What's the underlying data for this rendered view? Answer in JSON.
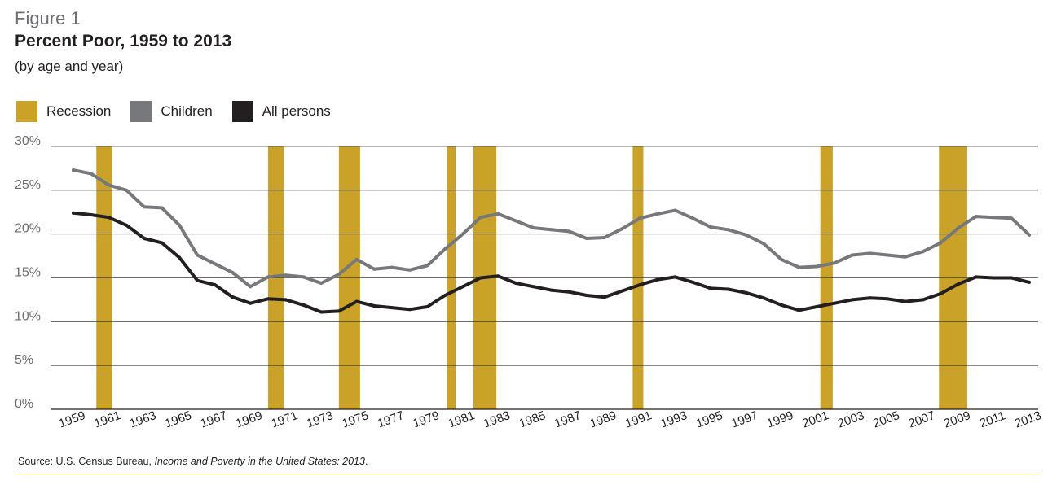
{
  "header": {
    "figure_label": "Figure 1",
    "title": "Percent Poor, 1959 to 2013",
    "subtitle": "(by age and year)"
  },
  "legend": [
    {
      "label": "Recession",
      "color": "#c9a227"
    },
    {
      "label": "Children",
      "color": "#77787b"
    },
    {
      "label": "All persons",
      "color": "#231f20"
    }
  ],
  "source": {
    "prefix": "Source: U.S. Census Bureau, ",
    "title": "Income and Poverty in the United States: 2013",
    "suffix": "."
  },
  "chart_data": {
    "type": "line",
    "title": "Percent Poor, 1959 to 2013",
    "xlabel": "",
    "ylabel": "",
    "xlim": [
      1959,
      2013
    ],
    "ylim": [
      0,
      30
    ],
    "yticks": [
      0,
      5,
      10,
      15,
      20,
      25,
      30
    ],
    "ytick_labels": [
      "0%",
      "5%",
      "10%",
      "15%",
      "20%",
      "25%",
      "30%"
    ],
    "xticks": [
      1959,
      1961,
      1963,
      1965,
      1967,
      1969,
      1971,
      1973,
      1975,
      1977,
      1979,
      1981,
      1983,
      1985,
      1987,
      1989,
      1991,
      1993,
      1995,
      1997,
      1999,
      2001,
      2003,
      2005,
      2007,
      2009,
      2011,
      2013
    ],
    "grid": true,
    "x": [
      1959,
      1960,
      1961,
      1962,
      1963,
      1964,
      1965,
      1966,
      1967,
      1968,
      1969,
      1970,
      1971,
      1972,
      1973,
      1974,
      1975,
      1976,
      1977,
      1978,
      1979,
      1980,
      1981,
      1982,
      1983,
      1984,
      1985,
      1986,
      1987,
      1988,
      1989,
      1990,
      1991,
      1992,
      1993,
      1994,
      1995,
      1996,
      1997,
      1998,
      1999,
      2000,
      2001,
      2002,
      2003,
      2004,
      2005,
      2006,
      2007,
      2008,
      2009,
      2010,
      2011,
      2012,
      2013
    ],
    "series": [
      {
        "name": "Children",
        "color": "#77787b",
        "values": [
          27.3,
          26.9,
          25.6,
          25.0,
          23.1,
          23.0,
          21.0,
          17.6,
          16.6,
          15.6,
          14.0,
          15.1,
          15.3,
          15.1,
          14.4,
          15.4,
          17.1,
          16.0,
          16.2,
          15.9,
          16.4,
          18.3,
          20.0,
          21.9,
          22.3,
          21.5,
          20.7,
          20.5,
          20.3,
          19.5,
          19.6,
          20.6,
          21.8,
          22.3,
          22.7,
          21.8,
          20.8,
          20.5,
          19.9,
          18.9,
          17.1,
          16.2,
          16.3,
          16.7,
          17.6,
          17.8,
          17.6,
          17.4,
          18.0,
          19.0,
          20.7,
          22.0,
          21.9,
          21.8,
          19.9
        ]
      },
      {
        "name": "All persons",
        "color": "#231f20",
        "values": [
          22.4,
          22.2,
          21.9,
          21.0,
          19.5,
          19.0,
          17.3,
          14.7,
          14.2,
          12.8,
          12.1,
          12.6,
          12.5,
          11.9,
          11.1,
          11.2,
          12.3,
          11.8,
          11.6,
          11.4,
          11.7,
          13.0,
          14.0,
          15.0,
          15.2,
          14.4,
          14.0,
          13.6,
          13.4,
          13.0,
          12.8,
          13.5,
          14.2,
          14.8,
          15.1,
          14.5,
          13.8,
          13.7,
          13.3,
          12.7,
          11.9,
          11.3,
          11.7,
          12.1,
          12.5,
          12.7,
          12.6,
          12.3,
          12.5,
          13.2,
          14.3,
          15.1,
          15.0,
          15.0,
          14.5
        ]
      }
    ],
    "recessions": [
      [
        1960.3,
        1961.2
      ],
      [
        1970.0,
        1970.9
      ],
      [
        1974.0,
        1975.2
      ],
      [
        1980.1,
        1980.6
      ],
      [
        1981.6,
        1982.9
      ],
      [
        1990.6,
        1991.2
      ],
      [
        2001.2,
        2001.9
      ],
      [
        2007.9,
        2009.5
      ]
    ]
  }
}
